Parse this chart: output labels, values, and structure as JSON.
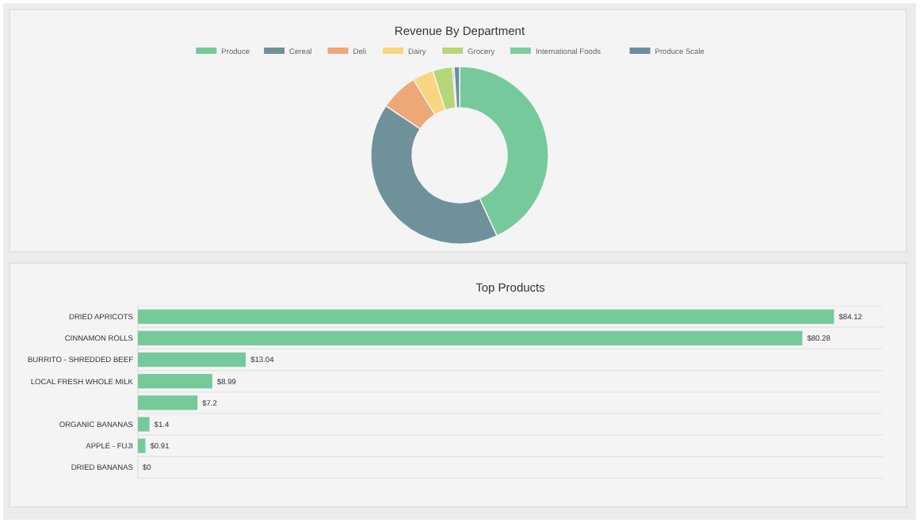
{
  "chart_data": [
    {
      "type": "donut",
      "title": "Revenue By Department",
      "categories": [
        "Produce",
        "Cereal",
        "Deli",
        "Dairy",
        "Grocery",
        "International Foods",
        "Produce Scale"
      ],
      "values": [
        43.1,
        41.3,
        6.9,
        3.8,
        3.6,
        0.3,
        1.0
      ],
      "colors": [
        "#76c99b",
        "#6f919a",
        "#eea878",
        "#fad57f",
        "#b5d77a",
        "#7bcf9e",
        "#6a8fa0"
      ],
      "legend": "top"
    },
    {
      "type": "bar",
      "orientation": "horizontal",
      "title": "Top Products",
      "categories": [
        "DRIED APRICOTS",
        "CINNAMON ROLLS",
        "BURRITO - SHREDDED BEEF",
        "LOCAL FRESH WHOLE MILK",
        null,
        "ORGANIC BANANAS",
        "APPLE - FUJI",
        "DRIED BANANAS"
      ],
      "values": [
        84.12,
        80.28,
        13.04,
        8.99,
        7.2,
        1.4,
        0.91,
        0
      ],
      "value_labels": [
        "$84.12",
        "$80.28",
        "$13.04",
        "$8.99",
        "$7.2",
        "$1.4",
        "$0.91",
        "$0"
      ],
      "color": "#76c99b",
      "grid": "y"
    }
  ]
}
